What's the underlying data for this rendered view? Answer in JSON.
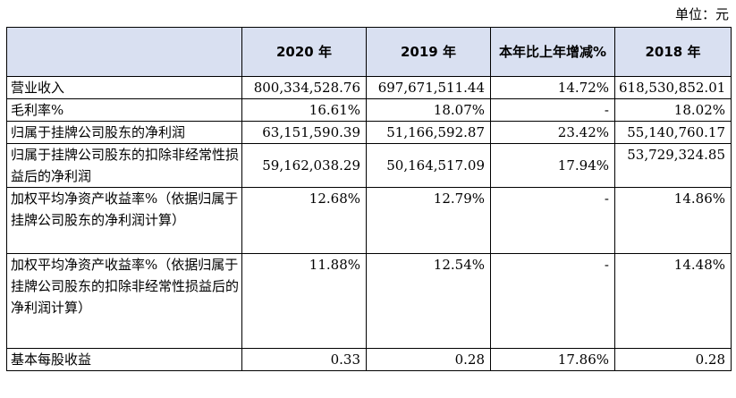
{
  "unit_label": "单位：元",
  "table": {
    "headers": [
      "",
      "2020 年",
      "2019 年",
      "本年比上年增减%",
      "2018 年"
    ],
    "rows": [
      {
        "label": "营业收入",
        "values": [
          "800,334,528.76",
          "697,671,511.44",
          "14.72%",
          "618,530,852.01"
        ]
      },
      {
        "label": "毛利率%",
        "values": [
          "16.61%",
          "18.07%",
          "-",
          "18.02%"
        ]
      },
      {
        "label": "归属于挂牌公司股东的净利润",
        "values": [
          "63,151,590.39",
          "51,166,592.87",
          "23.42%",
          "55,140,760.17"
        ]
      },
      {
        "label": "归属于挂牌公司股东的扣除非经常性损益后的净利润",
        "values": [
          "59,162,038.29",
          "50,164,517.09",
          "17.94%",
          "53,729,324.85"
        ]
      },
      {
        "label": "加权平均净资产收益率%（依据归属于挂牌公司股东的净利润计算）",
        "values": [
          "12.68%",
          "12.79%",
          "-",
          "14.86%"
        ]
      },
      {
        "label": "加权平均净资产收益率%（依据归属于挂牌公司股东的扣除非经常性损益后的净利润计算）",
        "values": [
          "11.88%",
          "12.54%",
          "-",
          "14.48%"
        ]
      },
      {
        "label": "基本每股收益",
        "values": [
          "0.33",
          "0.28",
          "17.86%",
          "0.28"
        ]
      }
    ]
  }
}
